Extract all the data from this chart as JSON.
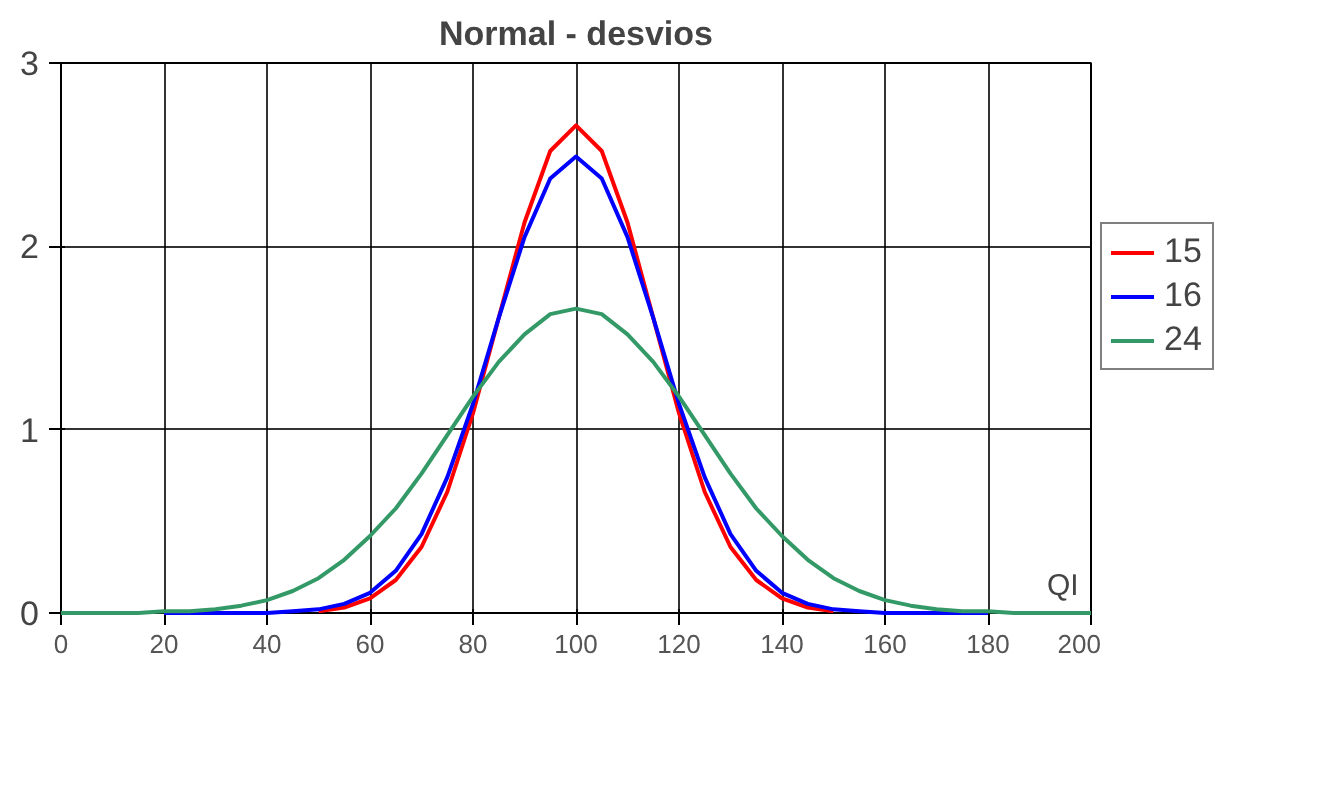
{
  "chart_data": {
    "type": "line",
    "title": "Normal - desvios",
    "xlabel": "QI",
    "x": [
      0,
      5,
      10,
      15,
      20,
      25,
      30,
      35,
      40,
      45,
      50,
      55,
      60,
      65,
      70,
      75,
      80,
      85,
      90,
      95,
      100,
      105,
      110,
      115,
      120,
      125,
      130,
      135,
      140,
      145,
      150,
      155,
      160,
      165,
      170,
      175,
      180,
      185,
      190,
      195,
      200
    ],
    "series": [
      {
        "name": "15",
        "color": "#ff0000",
        "values": [
          null,
          null,
          null,
          null,
          null,
          null,
          null,
          null,
          null,
          null,
          0.01,
          0.03,
          0.08,
          0.18,
          0.36,
          0.66,
          1.09,
          1.61,
          2.13,
          2.52,
          2.66,
          2.52,
          2.13,
          1.61,
          1.09,
          0.66,
          0.36,
          0.18,
          0.08,
          0.03,
          0.01,
          null,
          null,
          null,
          null,
          null,
          null,
          null,
          null,
          null,
          null
        ]
      },
      {
        "name": "16",
        "color": "#0000ff",
        "values": [
          null,
          null,
          null,
          null,
          0,
          0,
          0,
          0,
          0,
          0.01,
          0.02,
          0.05,
          0.11,
          0.23,
          0.43,
          0.74,
          1.14,
          1.61,
          2.05,
          2.37,
          2.49,
          2.37,
          2.05,
          1.61,
          1.14,
          0.74,
          0.43,
          0.23,
          0.11,
          0.05,
          0.02,
          0.01,
          0,
          0,
          0,
          0,
          0,
          null,
          null,
          null,
          null
        ]
      },
      {
        "name": "24",
        "color": "#339966",
        "values": [
          0,
          0,
          0,
          0,
          0.01,
          0.01,
          0.02,
          0.04,
          0.07,
          0.12,
          0.19,
          0.29,
          0.42,
          0.57,
          0.76,
          0.97,
          1.18,
          1.37,
          1.52,
          1.63,
          1.66,
          1.63,
          1.52,
          1.37,
          1.18,
          0.97,
          0.76,
          0.57,
          0.42,
          0.29,
          0.19,
          0.12,
          0.07,
          0.04,
          0.02,
          0.01,
          0.01,
          0,
          0,
          0,
          0
        ]
      }
    ],
    "xlim": [
      0,
      200
    ],
    "ylim": [
      0,
      3
    ],
    "xticks": [
      0,
      20,
      40,
      60,
      80,
      100,
      120,
      140,
      160,
      180,
      200
    ],
    "yticks": [
      0,
      1,
      2,
      3
    ],
    "grid": true,
    "legend": "right",
    "marker": "none",
    "line_style": "solid"
  }
}
